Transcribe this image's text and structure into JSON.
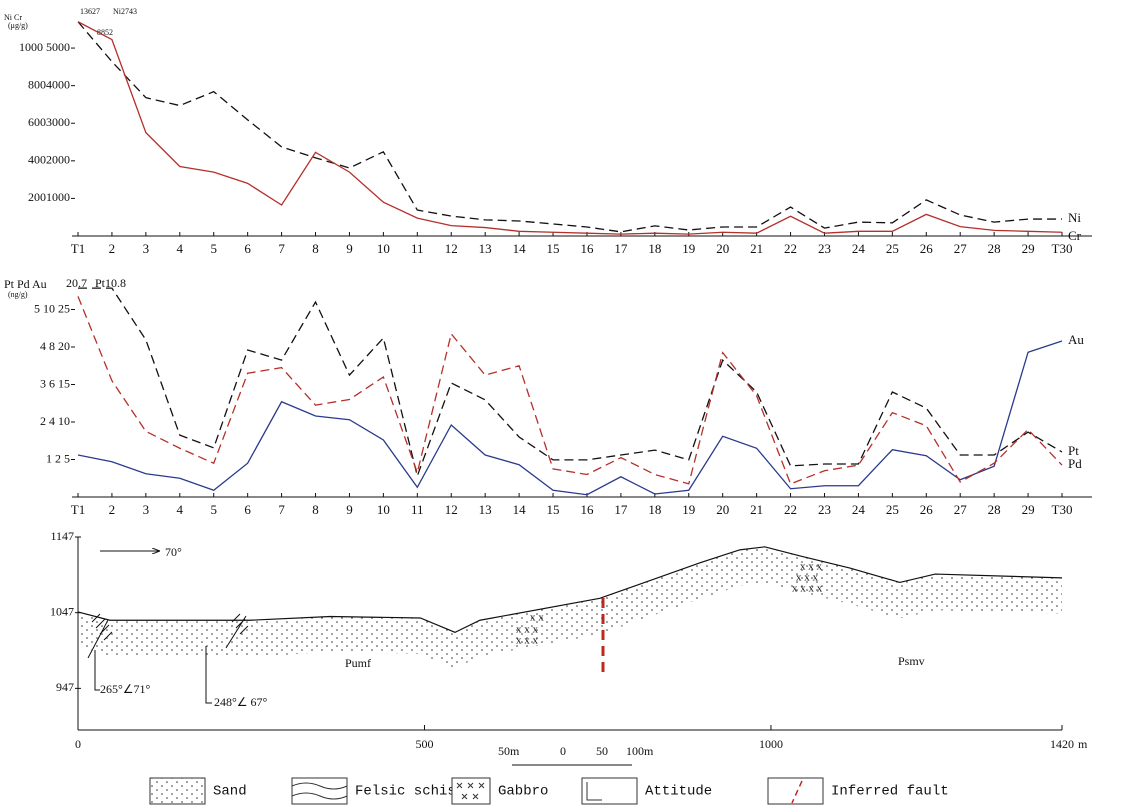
{
  "chart_data": [
    {
      "type": "line",
      "ylabel": "Ni Cr",
      "yunit": "(μg/g)",
      "annotations": [
        "13627",
        "Ni2743",
        "8852"
      ],
      "categories": [
        "T1",
        "2",
        "3",
        "4",
        "5",
        "6",
        "7",
        "8",
        "9",
        "10",
        "11",
        "12",
        "13",
        "14",
        "15",
        "16",
        "17",
        "18",
        "19",
        "20",
        "21",
        "22",
        "23",
        "24",
        "25",
        "26",
        "27",
        "28",
        "29",
        "T30"
      ],
      "ylim": [
        0,
        5800
      ],
      "y2lim": [
        0,
        1160
      ],
      "yticks": [
        {
          "value": 1000,
          "label": "2001000"
        },
        {
          "value": 2000,
          "label": "4002000"
        },
        {
          "value": 3000,
          "label": "6003000"
        },
        {
          "value": 4000,
          "label": "8004000"
        },
        {
          "value": 5000,
          "label": "1000 5000"
        }
      ],
      "series": [
        {
          "name": "Ni",
          "color": "#111111",
          "style": "dashed",
          "values": [
            5700,
            4640,
            3680,
            3470,
            3840,
            3090,
            2370,
            2080,
            1810,
            2240,
            690,
            530,
            430,
            400,
            320,
            240,
            110,
            270,
            160,
            240,
            240,
            770,
            210,
            370,
            350,
            960,
            560,
            370,
            450,
            450
          ]
        },
        {
          "name": "Cr",
          "color": "#b5302a",
          "style": "solid",
          "axis": "y2",
          "values": [
            1140,
            1045,
            550,
            370,
            340,
            280,
            165,
            445,
            340,
            180,
            95,
            55,
            45,
            25,
            20,
            15,
            10,
            15,
            10,
            20,
            15,
            105,
            15,
            25,
            25,
            115,
            50,
            30,
            25,
            20
          ]
        }
      ]
    },
    {
      "type": "line",
      "ylabel": "Pt Pd Au",
      "yunit": "(ng/g)",
      "annotations": [
        "20.7",
        "Pt10.8"
      ],
      "categories": [
        "T1",
        "2",
        "3",
        "4",
        "5",
        "6",
        "7",
        "8",
        "9",
        "10",
        "11",
        "12",
        "13",
        "14",
        "15",
        "16",
        "17",
        "18",
        "19",
        "20",
        "21",
        "22",
        "23",
        "24",
        "25",
        "26",
        "27",
        "28",
        "29",
        "T30"
      ],
      "ylim": [
        0,
        28
      ],
      "y2lim": [
        0,
        5.6
      ],
      "y3lim": [
        0,
        11.2
      ],
      "yticks": [
        {
          "value": 5,
          "label": "1 2 5"
        },
        {
          "value": 10,
          "label": "2 4 10"
        },
        {
          "value": 15,
          "label": "3 6 15"
        },
        {
          "value": 20,
          "label": "4 8 20"
        },
        {
          "value": 25,
          "label": "5 10 25"
        }
      ],
      "series": [
        {
          "name": "Au",
          "color": "#2b3a8c",
          "style": "solid",
          "values": [
            5.6,
            4.7,
            3.1,
            2.5,
            0.9,
            4.5,
            12.7,
            10.8,
            10.3,
            7.6,
            1.3,
            9.6,
            5.6,
            4.3,
            0.9,
            0.3,
            2.7,
            0.4,
            0.9,
            8.1,
            6.5,
            1.1,
            1.5,
            1.5,
            6.3,
            5.5,
            2.3,
            4.1,
            19.3,
            20.8
          ]
        },
        {
          "name": "Pt",
          "color": "#111111",
          "style": "dashed",
          "axis": "y2",
          "values": [
            5.57,
            5.57,
            4.19,
            1.65,
            1.31,
            3.92,
            3.65,
            5.2,
            3.25,
            4.24,
            0.56,
            3.04,
            2.59,
            1.6,
            0.99,
            0.99,
            1.12,
            1.25,
            0.99,
            3.65,
            2.8,
            0.83,
            0.88,
            0.88,
            2.8,
            2.37,
            1.12,
            1.12,
            1.73,
            1.2
          ]
        },
        {
          "name": "Pd",
          "color": "#b5302a",
          "style": "dashed",
          "axis": "y3",
          "values": [
            10.7,
            6.2,
            3.5,
            2.6,
            1.8,
            6.6,
            6.9,
            4.9,
            5.2,
            6.4,
            1.3,
            8.7,
            6.5,
            7.0,
            1.5,
            1.2,
            2.1,
            1.2,
            0.7,
            7.7,
            5.4,
            0.7,
            1.4,
            1.7,
            4.5,
            3.8,
            0.8,
            1.8,
            3.6,
            1.7
          ]
        }
      ]
    },
    {
      "type": "profile",
      "x_unit": "m",
      "x": [
        0,
        46,
        248,
        364,
        494,
        544,
        580,
        753,
        898,
        955,
        991,
        1042,
        1114,
        1186,
        1237,
        1420
      ],
      "values": [
        1048,
        1037,
        1037,
        1042,
        1040,
        1021,
        1037,
        1066,
        1113,
        1130,
        1134,
        1122,
        1106,
        1087,
        1098,
        1093
      ],
      "xlim": [
        0,
        1420
      ],
      "ylim": [
        892,
        1147
      ],
      "xticks": [
        0,
        500,
        1000,
        1420
      ],
      "yticks": [
        947,
        1047,
        1147
      ],
      "annotations": [
        "70°",
        "265°∠71°",
        "248°∠ 67°",
        "Pumf",
        "Psmv"
      ]
    }
  ],
  "scale_bar": {
    "labels": [
      "50m",
      "0",
      "50",
      "100m"
    ]
  },
  "legend": {
    "items": [
      "Sand",
      "Felsic schist",
      "Gabbro",
      "Attitude",
      "Inferred fault"
    ]
  }
}
